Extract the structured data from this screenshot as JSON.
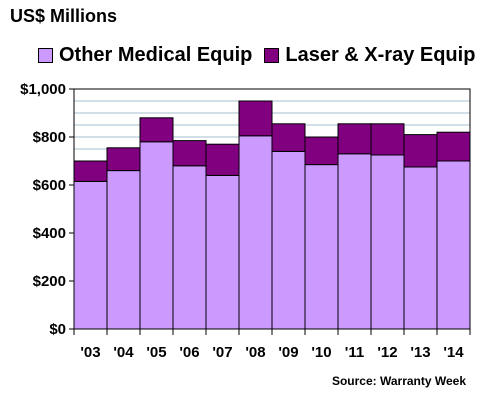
{
  "title": "US$ Millions",
  "source": "Source: Warranty Week",
  "colors": {
    "other": "#cc99ff",
    "laser": "#800080",
    "grid": "#a6bfcf",
    "background": "#ffffff"
  },
  "chart_data": {
    "type": "bar",
    "stacked": true,
    "categories": [
      "'03",
      "'04",
      "'05",
      "'06",
      "'07",
      "'08",
      "'09",
      "'10",
      "'11",
      "'12",
      "'13",
      "'14"
    ],
    "series": [
      {
        "name": "Other Medical Equip",
        "values": [
          615,
          660,
          780,
          680,
          640,
          805,
          740,
          685,
          730,
          725,
          675,
          700
        ]
      },
      {
        "name": "Laser & X-ray Equip",
        "values": [
          85,
          95,
          100,
          105,
          130,
          145,
          115,
          115,
          125,
          130,
          135,
          120
        ]
      }
    ],
    "ylim": [
      0,
      1000
    ],
    "yticks": [
      0,
      200,
      400,
      600,
      800,
      1000
    ],
    "ytick_labels": [
      "$0",
      "$200",
      "$400",
      "$600",
      "$800",
      "$1,000"
    ],
    "grid": true,
    "legend_position": "top"
  }
}
